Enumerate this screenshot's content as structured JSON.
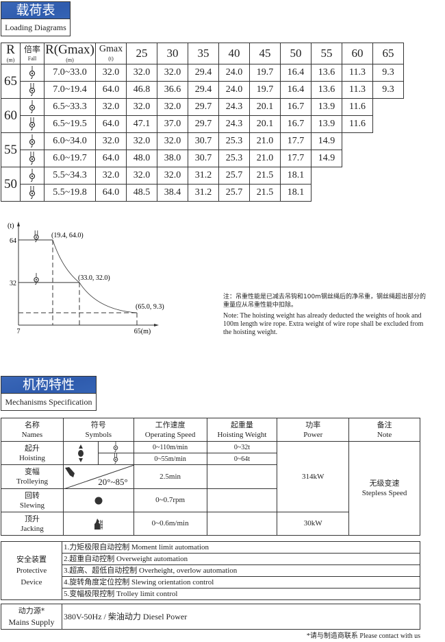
{
  "loading": {
    "title_cn": "载荷表",
    "title_en": "Loading Diagrams",
    "headers": {
      "r": "R",
      "r_unit": "(m)",
      "fall": "倍率",
      "fall_en": "Fall",
      "rg": "R(Gmax)",
      "rg_unit": "(m)",
      "g": "Gmax",
      "g_unit": "(t)",
      "radii": [
        "25",
        "30",
        "35",
        "40",
        "45",
        "50",
        "55",
        "60",
        "65"
      ]
    },
    "groups": [
      {
        "r": "65",
        "rows": [
          {
            "fall": "2-fall",
            "rg": "7.0~33.0",
            "g": "32.0",
            "vals": [
              "32.0",
              "32.0",
              "29.4",
              "24.0",
              "19.7",
              "16.4",
              "13.6",
              "11.3",
              "9.3"
            ]
          },
          {
            "fall": "4-fall",
            "rg": "7.0~19.4",
            "g": "64.0",
            "vals": [
              "46.8",
              "36.6",
              "29.4",
              "24.0",
              "19.7",
              "16.4",
              "13.6",
              "11.3",
              "9.3"
            ]
          }
        ]
      },
      {
        "r": "60",
        "rows": [
          {
            "fall": "2-fall",
            "rg": "6.5~33.3",
            "g": "32.0",
            "vals": [
              "32.0",
              "32.0",
              "29.7",
              "24.3",
              "20.1",
              "16.7",
              "13.9",
              "11.6"
            ]
          },
          {
            "fall": "4-fall",
            "rg": "6.5~19.5",
            "g": "64.0",
            "vals": [
              "47.1",
              "37.0",
              "29.7",
              "24.3",
              "20.1",
              "16.7",
              "13.9",
              "11.6"
            ]
          }
        ]
      },
      {
        "r": "55",
        "rows": [
          {
            "fall": "2-fall",
            "rg": "6.0~34.0",
            "g": "32.0",
            "vals": [
              "32.0",
              "32.0",
              "30.7",
              "25.3",
              "21.0",
              "17.7",
              "14.9"
            ]
          },
          {
            "fall": "4-fall",
            "rg": "6.0~19.7",
            "g": "64.0",
            "vals": [
              "48.0",
              "38.0",
              "30.7",
              "25.3",
              "21.0",
              "17.7",
              "14.9"
            ]
          }
        ]
      },
      {
        "r": "50",
        "rows": [
          {
            "fall": "2-fall",
            "rg": "5.5~34.3",
            "g": "32.0",
            "vals": [
              "32.0",
              "32.0",
              "31.2",
              "25.7",
              "21.5",
              "18.1"
            ]
          },
          {
            "fall": "4-fall",
            "rg": "5.5~19.8",
            "g": "64.0",
            "vals": [
              "48.5",
              "38.4",
              "31.2",
              "25.7",
              "21.5",
              "18.1"
            ]
          }
        ]
      }
    ]
  },
  "chart_data": {
    "type": "line",
    "ylabel": "(t)",
    "xtick_labels": [
      "7",
      "65(m)"
    ],
    "ytick_labels": [
      "64",
      "32"
    ],
    "x_range": [
      7,
      65
    ],
    "points": [
      [
        7,
        64.0
      ],
      [
        19.4,
        64.0
      ],
      [
        33.0,
        32.0
      ],
      [
        65.0,
        9.3
      ]
    ],
    "point_labels": [
      "(19.4, 64.0)",
      "(33.0, 32.0)",
      "(65.0, 9.3)"
    ],
    "grid": false
  },
  "note": {
    "cn": "注：吊重性能是已减去吊钩和100m钢丝绳后的净吊重，钢丝绳超出部分的重量应从吊重性能中扣除。",
    "en": "Note: The hoisting weight has already deducted the weights of hook and 100m length wire rope. Extra weight of wire rope shall be excluded from the hoisting weight."
  },
  "mech": {
    "title_cn": "机构特性",
    "title_en": "Mechanisms Specification",
    "headers": [
      {
        "cn": "名称",
        "en": "Names"
      },
      {
        "cn": "符号",
        "en": "Symbols"
      },
      {
        "cn": "工作速度",
        "en": "Operating Speed"
      },
      {
        "cn": "起重量",
        "en": "Hoisting Weight"
      },
      {
        "cn": "功率",
        "en": "Power"
      },
      {
        "cn": "备注",
        "en": "Note"
      }
    ],
    "hoisting": {
      "cn": "起升",
      "en": "Hoisting",
      "speed1": "0~110m/min",
      "speed2": "0~55m/min",
      "w1": "0~32t",
      "w2": "0~64t"
    },
    "trolleying": {
      "cn": "变幅",
      "en": "Trolleying",
      "angle": "20°~85°",
      "speed": "2.5min"
    },
    "slewing": {
      "cn": "回转",
      "en": "Slewing",
      "speed": "0~0.7rpm"
    },
    "jacking": {
      "cn": "顶升",
      "en": "Jacking",
      "speed": "0~0.6m/min",
      "power": "30kW"
    },
    "power_main": "314kW",
    "note_cn": "无级变速",
    "note_en": "Stepless Speed"
  },
  "protective": {
    "label_cn": "安全装置",
    "label_en1": "Protective",
    "label_en2": "Device",
    "items": [
      "1.力矩极限自动控制  Moment limit automation",
      "2.超重自动控制  Overweight automation",
      "3.超高、超低自动控制  Overheight, overlow automation",
      "4.旋转角度定位控制  Slewing orientation control",
      "5.变幅极限控制  Trolley limit control"
    ]
  },
  "mains": {
    "label_cn": "动力源*",
    "label_en": "Mains Supply",
    "value": "380V-50Hz / 柴油动力  Diesel Power"
  },
  "footnote": "*请与制造商联系  Please contact with us",
  "colors": {
    "header_blue": "#2f5cae"
  }
}
